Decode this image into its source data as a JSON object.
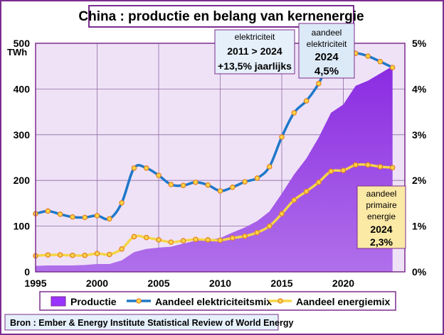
{
  "chart_data": {
    "type": "area",
    "title": "China : productie en belang van kernenergie",
    "ylabel_left": "TWh",
    "x": [
      1995,
      1996,
      1997,
      1998,
      1999,
      2000,
      2001,
      2002,
      2003,
      2004,
      2005,
      2006,
      2007,
      2008,
      2009,
      2010,
      2011,
      2012,
      2013,
      2014,
      2015,
      2016,
      2017,
      2018,
      2019,
      2020,
      2021,
      2022,
      2023,
      2024
    ],
    "xlim": [
      1995,
      2025
    ],
    "xticks": [
      "1995",
      "2000",
      "2005",
      "2010",
      "2015",
      "2020"
    ],
    "y_left_lim": [
      0,
      500
    ],
    "y_left_ticks": [
      "0",
      "100",
      "200",
      "300",
      "400",
      "500"
    ],
    "y_right_lim": [
      0,
      5
    ],
    "y_right_ticks": [
      "0%",
      "1%",
      "2%",
      "3%",
      "4%",
      "5%"
    ],
    "grid": true,
    "legend_position": "bottom",
    "series": [
      {
        "name": "Productie",
        "axis": "left",
        "style": "area",
        "color": "#9933ff",
        "values": [
          13,
          14,
          14,
          14,
          15,
          17,
          17,
          25,
          43,
          50,
          53,
          55,
          62,
          68,
          70,
          74,
          86,
          97,
          111,
          132,
          171,
          213,
          248,
          294,
          348,
          366,
          407,
          418,
          434,
          450
        ]
      },
      {
        "name": "Aandeel elektriciteitsmix",
        "axis": "right",
        "style": "line",
        "color": "#1f78c8",
        "values": [
          1.27,
          1.33,
          1.26,
          1.2,
          1.19,
          1.23,
          1.16,
          1.51,
          2.27,
          2.27,
          2.11,
          1.91,
          1.89,
          1.96,
          1.9,
          1.77,
          1.85,
          1.97,
          2.05,
          2.3,
          2.95,
          3.48,
          3.74,
          4.12,
          4.65,
          4.7,
          4.78,
          4.72,
          4.6,
          4.47
        ]
      },
      {
        "name": "Aandeel energiemix",
        "axis": "right",
        "style": "line",
        "color": "#f5d547",
        "values": [
          0.35,
          0.37,
          0.37,
          0.36,
          0.36,
          0.4,
          0.38,
          0.5,
          0.77,
          0.75,
          0.7,
          0.65,
          0.68,
          0.71,
          0.7,
          0.69,
          0.74,
          0.78,
          0.86,
          1.0,
          1.27,
          1.57,
          1.76,
          1.96,
          2.2,
          2.22,
          2.34,
          2.34,
          2.3,
          2.28
        ]
      }
    ],
    "annotations": [
      {
        "id": "elec_growth",
        "lines": [
          "elektriciteit",
          "2011 > 2024",
          "+13,5% jaarlijks"
        ],
        "bg": "#e6f0fb"
      },
      {
        "id": "elec_share",
        "lines": [
          "aandeel",
          "elektriciteit",
          "2024",
          "4,5%"
        ],
        "bg": "#dce9f7"
      },
      {
        "id": "energy_share",
        "lines": [
          "aandeel",
          "primaire",
          "energie",
          "2024",
          "2,3%"
        ],
        "bg": "#fbe9a6"
      }
    ],
    "source": "Bron : Ember & Energy Institute Statistical Review of World Energy"
  },
  "colors": {
    "plot_bg": "#efe2f7",
    "frame": "#7b2d8e",
    "marker_fill": "#f5d547",
    "marker_stroke": "#e67e22"
  }
}
